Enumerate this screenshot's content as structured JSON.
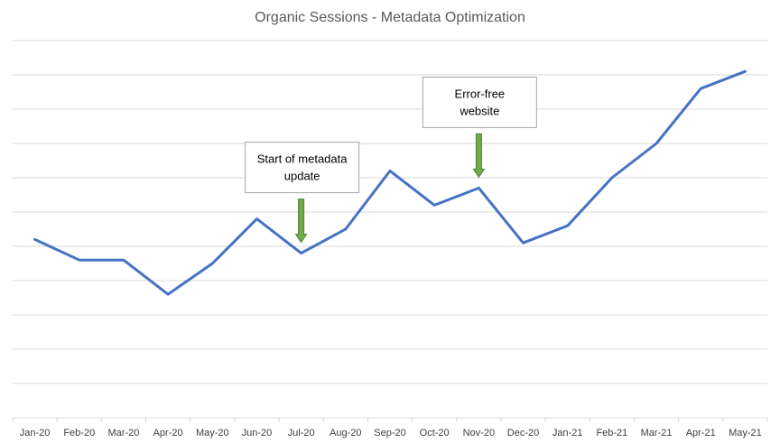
{
  "chart_data": {
    "type": "line",
    "title": "Organic Sessions - Metadata Optimization",
    "xlabel": "",
    "ylabel": "",
    "categories": [
      "Jan-20",
      "Feb-20",
      "Mar-20",
      "Apr-20",
      "May-20",
      "Jun-20",
      "Jul-20",
      "Aug-20",
      "Sep-20",
      "Oct-20",
      "Nov-20",
      "Dec-20",
      "Jan-21",
      "Feb-21",
      "Mar-21",
      "Apr-21",
      "May-21"
    ],
    "series": [
      {
        "values": [
          4.2,
          3.6,
          3.6,
          2.6,
          3.5,
          4.8,
          3.8,
          4.5,
          6.2,
          5.2,
          5.7,
          4.1,
          4.6,
          6.0,
          7.0,
          8.6,
          9.1
        ]
      }
    ],
    "ylim": [
      -1,
      10
    ],
    "y_tick_labels_shown": false,
    "grid": true,
    "legend": "none",
    "colors": {
      "line": "#4472C4",
      "grid": "#D9D9D9",
      "arrow": "#70AD47"
    },
    "annotations": [
      {
        "text_lines": [
          "Start of metadata",
          "update"
        ],
        "category": "Jul-20"
      },
      {
        "text_lines": [
          "Error-free",
          "website"
        ],
        "category": "Nov-20"
      }
    ]
  }
}
